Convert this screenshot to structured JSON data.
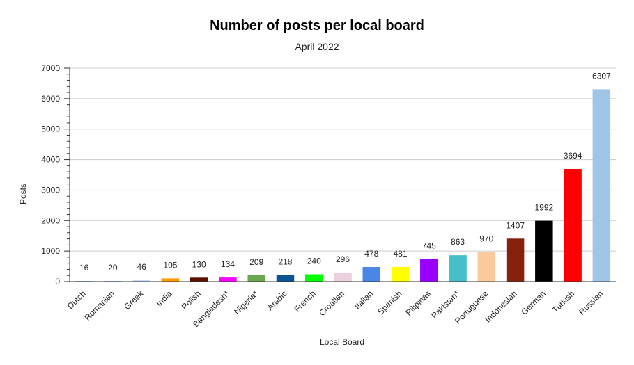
{
  "chart_data": {
    "type": "bar",
    "title": "Number of posts per local board",
    "subtitle": "April 2022",
    "xlabel": "Local Board",
    "ylabel": "Posts",
    "ylim": [
      0,
      7000
    ],
    "yticks": [
      0,
      1000,
      2000,
      3000,
      4000,
      5000,
      6000,
      7000
    ],
    "grid": true,
    "legend": "none",
    "categories": [
      "Dutch",
      "Romanian",
      "Greek",
      "India",
      "Polish",
      "Bangladesh*",
      "Nigeria*",
      "Arabic",
      "French",
      "Croatian",
      "Italian",
      "Spanish",
      "Pilipinas",
      "Pakistan*",
      "Portuguese",
      "Indonesian",
      "German",
      "Turkish",
      "Russian"
    ],
    "values": [
      16,
      20,
      46,
      105,
      130,
      134,
      209,
      218,
      240,
      296,
      478,
      481,
      745,
      863,
      970,
      1407,
      1992,
      3694,
      6307
    ],
    "colors": [
      "#9fc5e8",
      "#a4c2f4",
      "#c9daf8",
      "#ff9900",
      "#5b0f00",
      "#ff00ff",
      "#6aa84f",
      "#0b5394",
      "#00ff00",
      "#ead1dc",
      "#4a86e8",
      "#ffff00",
      "#9900ff",
      "#45bfc8",
      "#f9cb9c",
      "#85200c",
      "#000000",
      "#ff0000",
      "#9fc5e8"
    ]
  }
}
